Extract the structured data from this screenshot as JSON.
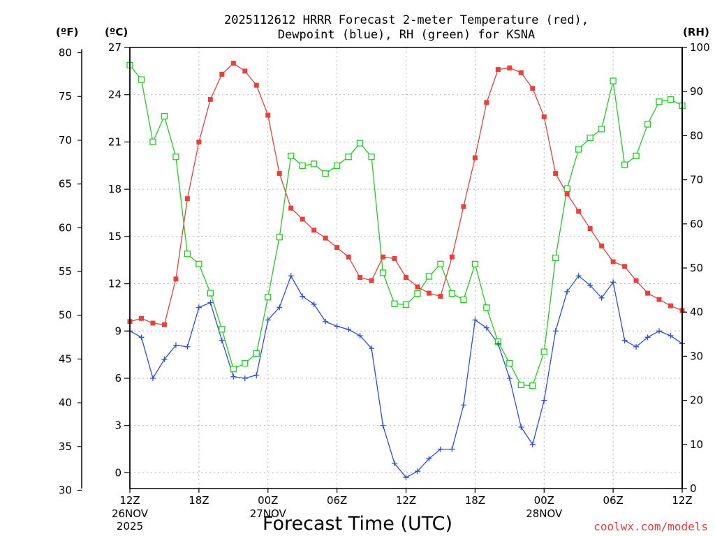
{
  "chart_data": {
    "type": "line",
    "title_line1": "2025112612 HRRR Forecast 2-meter Temperature (red),",
    "title_line2": "Dewpoint (blue), RH (green) for KSNA",
    "xlabel": "Forecast Time (UTC)",
    "units": {
      "f": "(ºF)",
      "c": "(ºC)",
      "rh": "(RH)"
    },
    "credit": "coolwx.com/models",
    "x_range": [
      0,
      48
    ],
    "c_range": [
      -1,
      27
    ],
    "f_range": [
      30,
      80
    ],
    "rh_range": [
      0,
      100
    ],
    "c_ticks": [
      "0",
      "3",
      "6",
      "9",
      "12",
      "15",
      "18",
      "21",
      "24",
      "27"
    ],
    "f_ticks": [
      "30",
      "35",
      "40",
      "45",
      "50",
      "55",
      "60",
      "65",
      "70",
      "75",
      "80"
    ],
    "rh_ticks": [
      "0",
      "10",
      "20",
      "30",
      "40",
      "50",
      "60",
      "70",
      "80",
      "90",
      "100"
    ],
    "x_ticks": [
      {
        "h": 0,
        "label": "12Z",
        "sub1": "26NOV",
        "sub2": "2025"
      },
      {
        "h": 6,
        "label": "18Z",
        "sub1": "",
        "sub2": ""
      },
      {
        "h": 12,
        "label": "00Z",
        "sub1": "27NOV",
        "sub2": ""
      },
      {
        "h": 18,
        "label": "06Z",
        "sub1": "",
        "sub2": ""
      },
      {
        "h": 24,
        "label": "12Z",
        "sub1": "",
        "sub2": ""
      },
      {
        "h": 30,
        "label": "18Z",
        "sub1": "",
        "sub2": ""
      },
      {
        "h": 36,
        "label": "00Z",
        "sub1": "28NOV",
        "sub2": ""
      },
      {
        "h": 42,
        "label": "06Z",
        "sub1": "",
        "sub2": ""
      },
      {
        "h": 48,
        "label": "12Z",
        "sub1": "",
        "sub2": ""
      }
    ],
    "series": [
      {
        "name": "Temperature",
        "units": "C",
        "color": "#e8403a",
        "values": [
          9.6,
          9.8,
          9.5,
          9.4,
          12.3,
          17.4,
          21.0,
          23.7,
          25.3,
          26.0,
          25.5,
          24.6,
          22.7,
          19.0,
          16.8,
          16.1,
          15.4,
          14.9,
          14.3,
          13.7,
          12.4,
          12.2,
          13.7,
          13.6,
          12.4,
          11.8,
          11.4,
          11.2,
          13.7,
          16.9,
          20.0,
          23.5,
          25.6,
          25.7,
          25.4,
          24.4,
          22.6,
          19.0,
          17.7,
          16.6,
          15.5,
          14.4,
          13.4,
          13.1,
          12.2,
          11.4,
          11.0,
          10.6,
          10.3
        ]
      },
      {
        "name": "Dewpoint",
        "units": "C",
        "color": "#2c4de0",
        "values": [
          9.0,
          8.6,
          6.0,
          7.2,
          8.1,
          8.0,
          10.5,
          10.8,
          8.4,
          6.1,
          6.0,
          6.2,
          9.7,
          10.5,
          12.5,
          11.2,
          10.7,
          9.6,
          9.3,
          9.1,
          8.7,
          7.9,
          3.0,
          0.6,
          -0.3,
          0.1,
          0.9,
          1.5,
          1.5,
          4.3,
          9.7,
          9.2,
          8.2,
          6.0,
          2.9,
          1.8,
          4.6,
          9.0,
          11.5,
          12.5,
          11.9,
          11.1,
          12.1,
          8.4,
          8.0,
          8.6,
          9.0,
          8.7,
          8.2
        ]
      },
      {
        "name": "RH",
        "units": "%",
        "color": "#22cc22",
        "values": [
          96.0,
          92.7,
          78.6,
          84.4,
          75.2,
          53.2,
          50.9,
          44.3,
          36.1,
          27.1,
          28.4,
          30.6,
          43.4,
          57.0,
          75.4,
          73.2,
          73.6,
          71.4,
          73.2,
          75.2,
          78.3,
          75.2,
          48.9,
          41.9,
          41.7,
          44.2,
          48.1,
          50.9,
          44.2,
          42.8,
          50.9,
          41.0,
          33.3,
          28.4,
          23.5,
          23.3,
          31.0,
          52.3,
          68.0,
          76.9,
          79.5,
          81.5,
          92.4,
          73.4,
          75.4,
          82.6,
          87.7,
          88.2,
          86.8
        ]
      }
    ]
  }
}
